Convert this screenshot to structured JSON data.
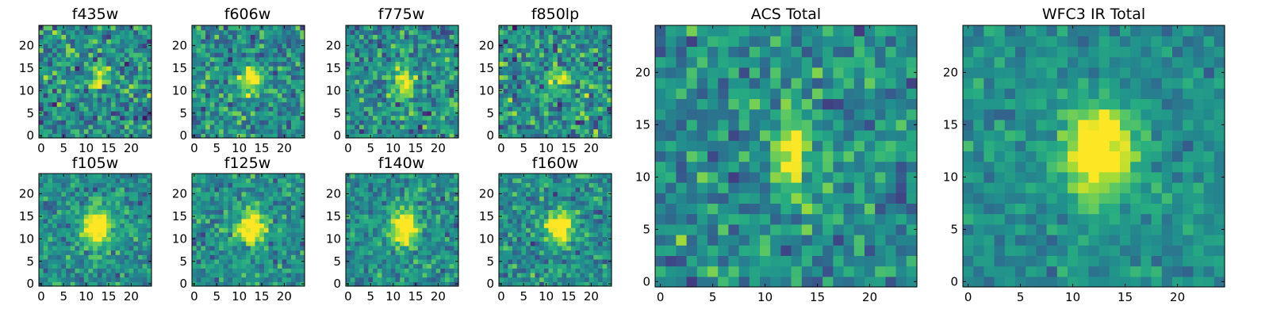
{
  "figure": {
    "panels": [
      {
        "id": "f435w",
        "title": "f435w"
      },
      {
        "id": "f606w",
        "title": "f606w"
      },
      {
        "id": "f775w",
        "title": "f775w"
      },
      {
        "id": "f850lp",
        "title": "f850lp"
      },
      {
        "id": "f105w",
        "title": "f105w"
      },
      {
        "id": "f125w",
        "title": "f125w"
      },
      {
        "id": "f140w",
        "title": "f140w"
      },
      {
        "id": "f160w",
        "title": "f160w"
      },
      {
        "id": "acs-total",
        "title": "ACS Total"
      },
      {
        "id": "wfc3-ir-total",
        "title": "WFC3 IR Total"
      }
    ]
  },
  "chart_data": [
    {
      "type": "heatmap",
      "title": "f435w",
      "grid_size": 25,
      "xlim": [
        -0.5,
        24.5
      ],
      "ylim": [
        -0.5,
        24.5
      ],
      "xticks": [
        0,
        5,
        10,
        15,
        20
      ],
      "yticks": [
        0,
        5,
        10,
        15,
        20
      ],
      "source": {
        "x": 12.5,
        "y": 12.5,
        "sigma_x": 1.3,
        "sigma_y": 1.6,
        "peak": 0.55
      },
      "noise": 0.32,
      "seed": 11,
      "colormap": "viridis",
      "colorbar": false
    },
    {
      "type": "heatmap",
      "title": "f606w",
      "grid_size": 25,
      "xlim": [
        -0.5,
        24.5
      ],
      "ylim": [
        -0.5,
        24.5
      ],
      "xticks": [
        0,
        5,
        10,
        15,
        20
      ],
      "yticks": [
        0,
        5,
        10,
        15,
        20
      ],
      "source": {
        "x": 12.5,
        "y": 12.5,
        "sigma_x": 1.6,
        "sigma_y": 2.0,
        "peak": 0.62
      },
      "noise": 0.3,
      "seed": 23,
      "colormap": "viridis",
      "colorbar": false
    },
    {
      "type": "heatmap",
      "title": "f775w",
      "grid_size": 25,
      "xlim": [
        -0.5,
        24.5
      ],
      "ylim": [
        -0.5,
        24.5
      ],
      "xticks": [
        0,
        5,
        10,
        15,
        20
      ],
      "yticks": [
        0,
        5,
        10,
        15,
        20
      ],
      "source": {
        "x": 12.5,
        "y": 12.0,
        "sigma_x": 1.5,
        "sigma_y": 2.4,
        "peak": 0.55
      },
      "noise": 0.3,
      "seed": 37,
      "colormap": "viridis",
      "colorbar": false
    },
    {
      "type": "heatmap",
      "title": "f850lp",
      "grid_size": 25,
      "xlim": [
        -0.5,
        24.5
      ],
      "ylim": [
        -0.5,
        24.5
      ],
      "xticks": [
        0,
        5,
        10,
        15,
        20
      ],
      "yticks": [
        0,
        5,
        10,
        15,
        20
      ],
      "source": {
        "x": 13.0,
        "y": 12.5,
        "sigma_x": 1.5,
        "sigma_y": 1.8,
        "peak": 0.5
      },
      "noise": 0.34,
      "seed": 41,
      "colormap": "viridis",
      "colorbar": false
    },
    {
      "type": "heatmap",
      "title": "f105w",
      "grid_size": 25,
      "xlim": [
        -0.5,
        24.5
      ],
      "ylim": [
        -0.5,
        24.5
      ],
      "xticks": [
        0,
        5,
        10,
        15,
        20
      ],
      "yticks": [
        0,
        5,
        10,
        15,
        20
      ],
      "source": {
        "x": 12.5,
        "y": 12.5,
        "sigma_x": 2.2,
        "sigma_y": 2.8,
        "peak": 0.72
      },
      "noise": 0.22,
      "seed": 53,
      "colormap": "viridis",
      "colorbar": false
    },
    {
      "type": "heatmap",
      "title": "f125w",
      "grid_size": 25,
      "xlim": [
        -0.5,
        24.5
      ],
      "ylim": [
        -0.5,
        24.5
      ],
      "xticks": [
        0,
        5,
        10,
        15,
        20
      ],
      "yticks": [
        0,
        5,
        10,
        15,
        20
      ],
      "source": {
        "x": 12.5,
        "y": 12.5,
        "sigma_x": 2.3,
        "sigma_y": 2.6,
        "peak": 0.7
      },
      "noise": 0.24,
      "seed": 67,
      "colormap": "viridis",
      "colorbar": false
    },
    {
      "type": "heatmap",
      "title": "f140w",
      "grid_size": 25,
      "xlim": [
        -0.5,
        24.5
      ],
      "ylim": [
        -0.5,
        24.5
      ],
      "xticks": [
        0,
        5,
        10,
        15,
        20
      ],
      "yticks": [
        0,
        5,
        10,
        15,
        20
      ],
      "source": {
        "x": 12.5,
        "y": 12.5,
        "sigma_x": 2.1,
        "sigma_y": 2.7,
        "peak": 0.72
      },
      "noise": 0.23,
      "seed": 79,
      "colormap": "viridis",
      "colorbar": false
    },
    {
      "type": "heatmap",
      "title": "f160w",
      "grid_size": 25,
      "xlim": [
        -0.5,
        24.5
      ],
      "ylim": [
        -0.5,
        24.5
      ],
      "xticks": [
        0,
        5,
        10,
        15,
        20
      ],
      "yticks": [
        0,
        5,
        10,
        15,
        20
      ],
      "source": {
        "x": 13.0,
        "y": 12.5,
        "sigma_x": 2.0,
        "sigma_y": 2.4,
        "peak": 0.75
      },
      "noise": 0.24,
      "seed": 97,
      "colormap": "viridis",
      "colorbar": false
    },
    {
      "type": "heatmap",
      "title": "ACS Total",
      "grid_size": 25,
      "xlim": [
        -0.5,
        24.5
      ],
      "ylim": [
        -0.5,
        24.5
      ],
      "xticks": [
        0,
        5,
        10,
        15,
        20
      ],
      "yticks": [
        0,
        5,
        10,
        15,
        20
      ],
      "source": {
        "x": 12.5,
        "y": 12.5,
        "sigma_x": 1.3,
        "sigma_y": 2.4,
        "peak": 0.55
      },
      "noise": 0.26,
      "seed": 103,
      "colormap": "viridis",
      "colorbar": false
    },
    {
      "type": "heatmap",
      "title": "WFC3 IR Total",
      "grid_size": 25,
      "xlim": [
        -0.5,
        24.5
      ],
      "ylim": [
        -0.5,
        24.5
      ],
      "xticks": [
        0,
        5,
        10,
        15,
        20
      ],
      "yticks": [
        0,
        5,
        10,
        15,
        20
      ],
      "source": {
        "x": 12.5,
        "y": 12.5,
        "sigma_x": 2.4,
        "sigma_y": 3.0,
        "peak": 0.72
      },
      "noise": 0.16,
      "seed": 131,
      "colormap": "viridis",
      "colorbar": false
    }
  ]
}
